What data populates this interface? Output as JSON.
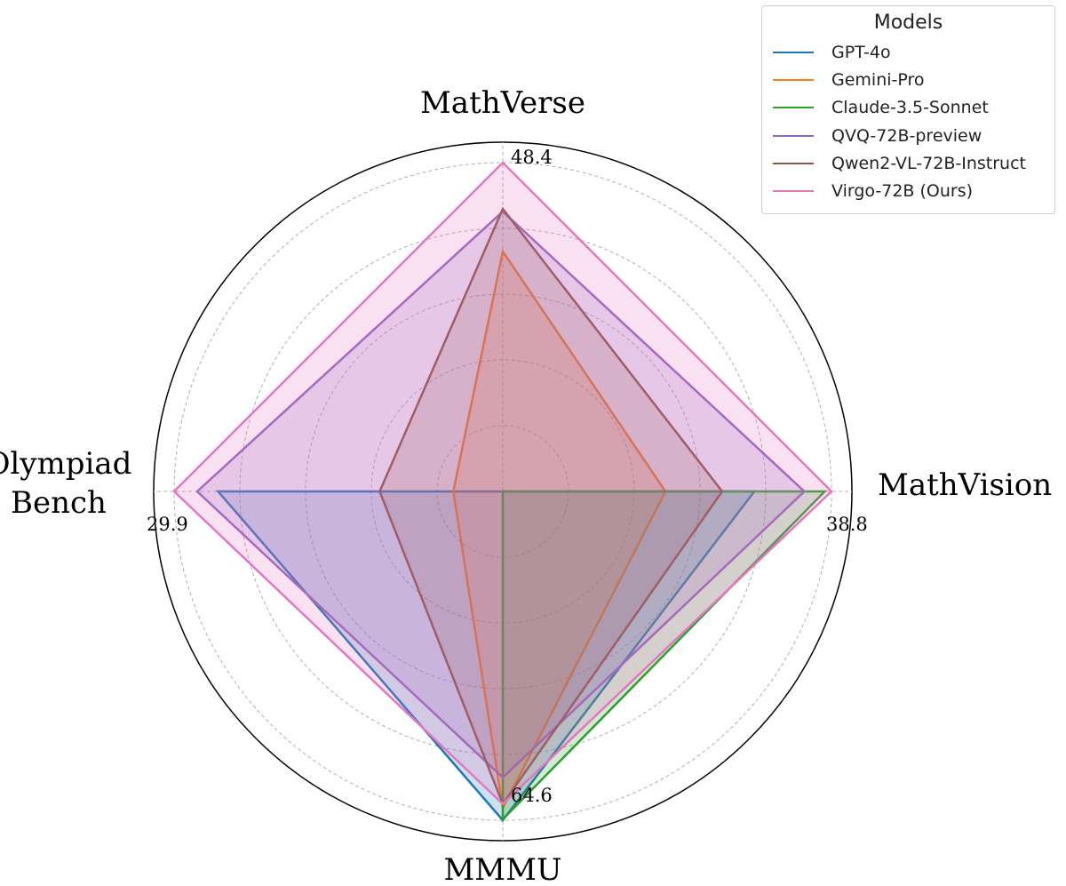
{
  "chart_data": {
    "type": "radar",
    "axes": [
      {
        "name": "MathVerse",
        "max": 48.4,
        "max_label": "48.4"
      },
      {
        "name": "MathVision",
        "max": 38.8,
        "max_label": "38.8"
      },
      {
        "name": "MMMU",
        "max": 64.6,
        "max_label": "64.6"
      },
      {
        "name": "Olympiad\nBench",
        "max": 29.9,
        "max_label": "29.9"
      }
    ],
    "series": [
      {
        "name": "GPT-4o",
        "color": "#1f77b4",
        "values": [
          0.0,
          29.7,
          64.6,
          25.9
        ]
      },
      {
        "name": "Gemini-Pro",
        "color": "#ff7f0e",
        "values": [
          35.3,
          19.2,
          62.2,
          4.5
        ]
      },
      {
        "name": "Claude-3.5-Sonnet",
        "color": "#2ca02c",
        "values": [
          0.0,
          38.0,
          64.4,
          0.0
        ]
      },
      {
        "name": "QVQ-72B-preview",
        "color": "#9467bd",
        "values": [
          41.2,
          35.6,
          56.2,
          27.8
        ]
      },
      {
        "name": "Qwen2-VL-72B-Instruct",
        "color": "#8c564b",
        "values": [
          41.6,
          25.9,
          61.4,
          11.2
        ]
      },
      {
        "name": "Virgo-72B (Ours)",
        "color": "#e377c2",
        "values": [
          48.4,
          38.8,
          61.4,
          29.9
        ]
      }
    ],
    "grid": true,
    "legend": {
      "title": "Models",
      "placement": "top-right"
    }
  }
}
